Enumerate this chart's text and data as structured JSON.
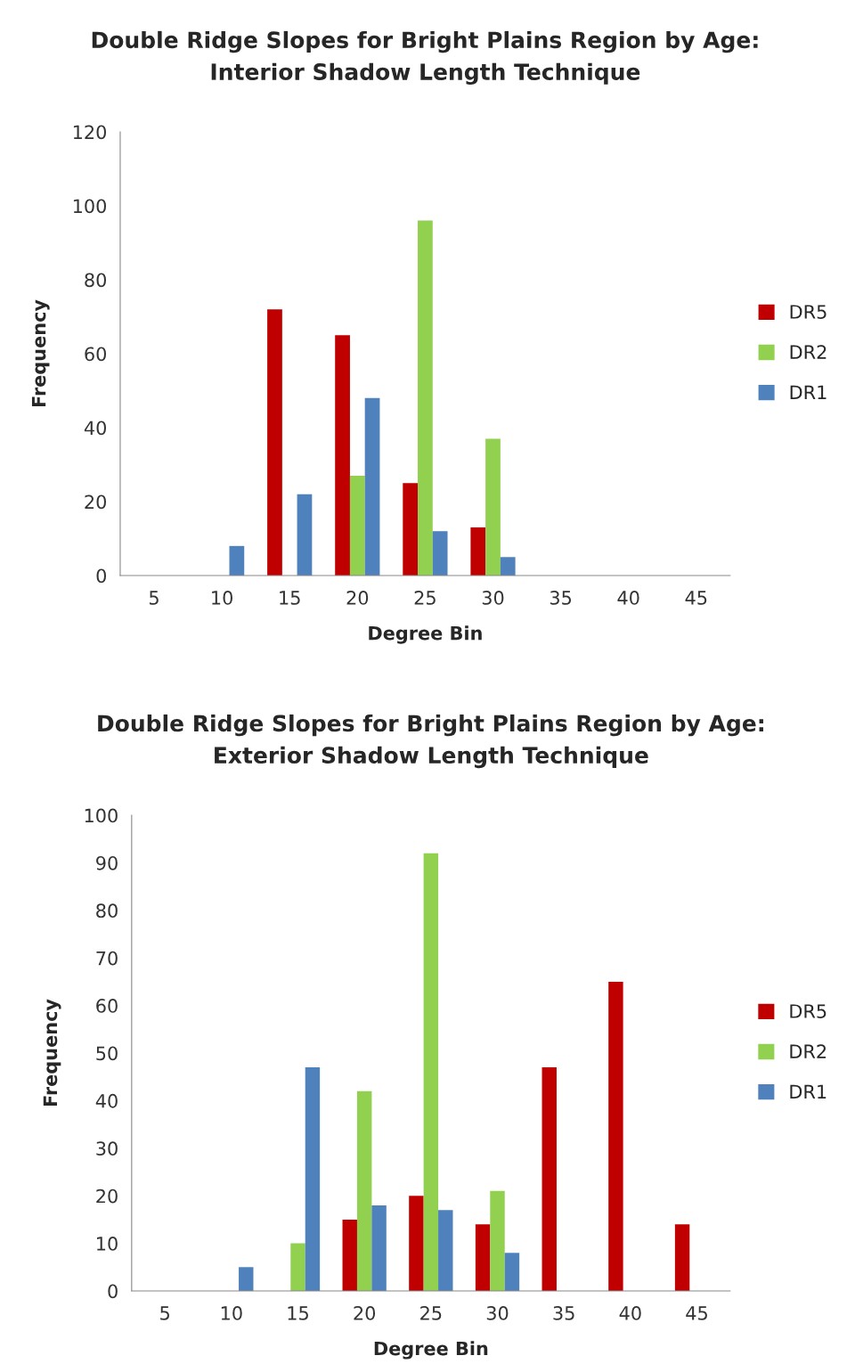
{
  "chart_data": [
    {
      "type": "bar",
      "title": "Double Ridge Slopes for Bright Plains Region by Age:\nInterior Shadow Length Technique",
      "xlabel": "Degree Bin",
      "ylabel": "Frequency",
      "categories": [
        "5",
        "10",
        "15",
        "20",
        "25",
        "30",
        "35",
        "40",
        "45"
      ],
      "series": [
        {
          "name": "DR5",
          "color": "#c00000",
          "values": [
            0,
            0,
            72,
            65,
            25,
            13,
            0,
            0,
            0
          ]
        },
        {
          "name": "DR2",
          "color": "#92d050",
          "values": [
            0,
            0,
            0,
            27,
            96,
            37,
            0,
            0,
            0
          ]
        },
        {
          "name": "DR1",
          "color": "#4f81bd",
          "values": [
            0,
            8,
            22,
            48,
            12,
            5,
            0,
            0,
            0
          ]
        }
      ],
      "ylim": [
        0,
        120
      ],
      "yticks": [
        0,
        20,
        40,
        60,
        80,
        100,
        120
      ],
      "grid": false,
      "legend": "right"
    },
    {
      "type": "bar",
      "title": "Double Ridge Slopes for Bright Plains Region by Age:\nExterior Shadow Length Technique",
      "xlabel": "Degree Bin",
      "ylabel": "Frequency",
      "categories": [
        "5",
        "10",
        "15",
        "20",
        "25",
        "30",
        "35",
        "40",
        "45"
      ],
      "series": [
        {
          "name": "DR5",
          "color": "#c00000",
          "values": [
            0,
            0,
            0,
            15,
            20,
            14,
            47,
            65,
            14
          ]
        },
        {
          "name": "DR2",
          "color": "#92d050",
          "values": [
            0,
            0,
            10,
            42,
            92,
            21,
            0,
            0,
            0
          ]
        },
        {
          "name": "DR1",
          "color": "#4f81bd",
          "values": [
            0,
            5,
            47,
            18,
            17,
            8,
            0,
            0,
            0
          ]
        }
      ],
      "ylim": [
        0,
        100
      ],
      "yticks": [
        0,
        10,
        20,
        30,
        40,
        50,
        60,
        70,
        80,
        90,
        100
      ],
      "grid": false,
      "legend": "right"
    }
  ]
}
